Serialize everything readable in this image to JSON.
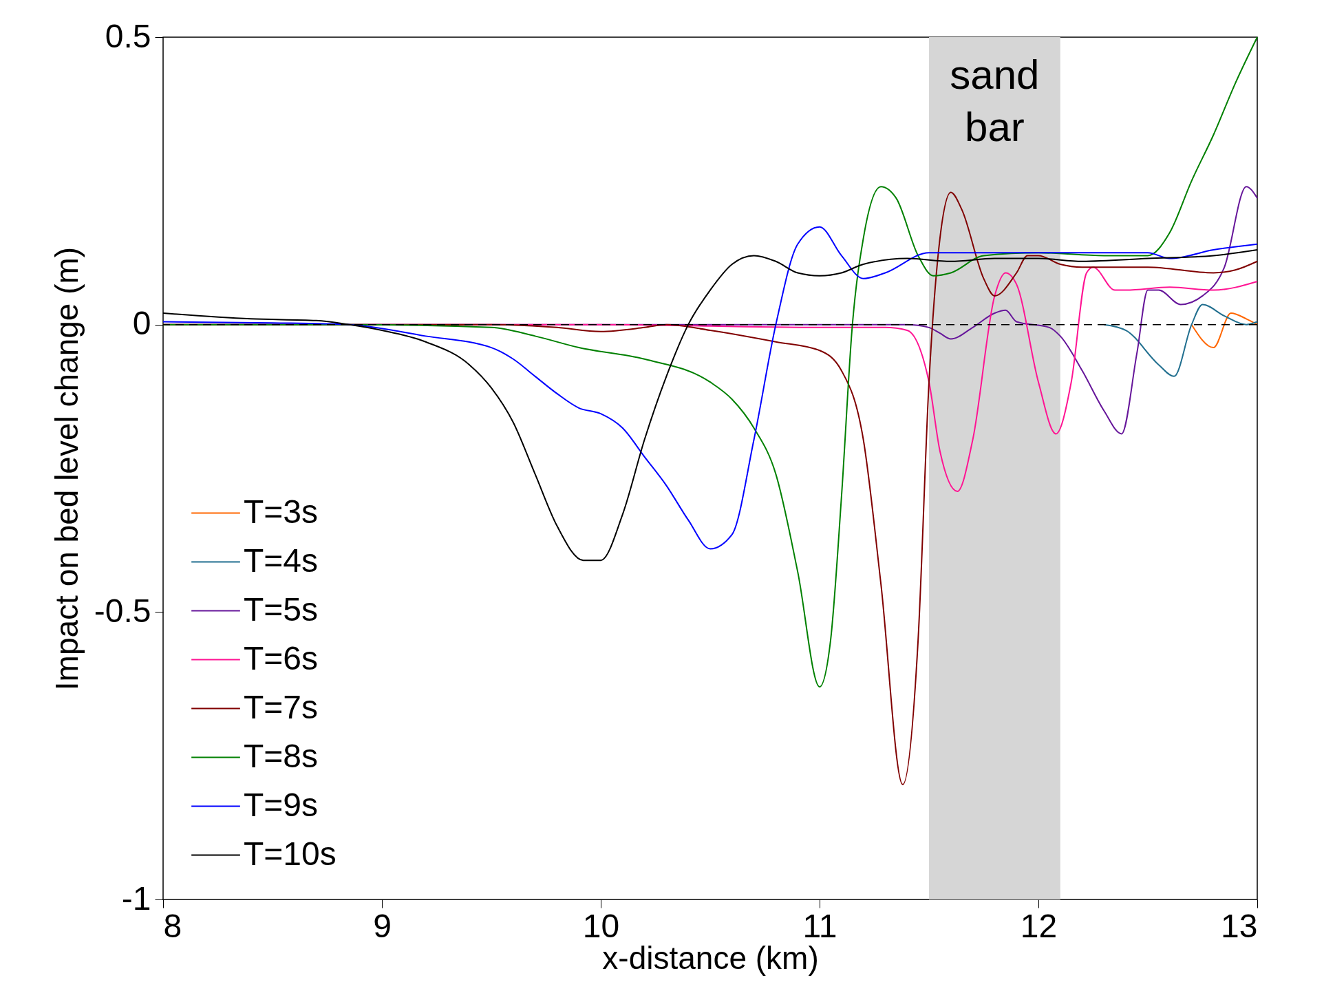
{
  "chart_data": {
    "type": "line",
    "xlabel": "x-distance (km)",
    "ylabel": "Impact on bed level change (m)",
    "xlim": [
      8,
      13
    ],
    "ylim": [
      -1,
      0.5
    ],
    "xticks": [
      8,
      9,
      10,
      11,
      12,
      13
    ],
    "yticks": [
      -1,
      -0.5,
      0,
      0.5
    ],
    "grid": false,
    "legend": "bottom left",
    "marker": "none",
    "line_style": "solid",
    "ref_lines": [
      {
        "axis": "y",
        "value": 0,
        "color": "#000000",
        "line_style": "dashed"
      }
    ],
    "bands": [
      {
        "axis": "x",
        "from": 11.5,
        "to": 12.1,
        "label": "sand bar",
        "color": "#d6d6d6"
      }
    ],
    "series": [
      {
        "name": "T=3s",
        "color": "#ff6600",
        "x": [
          12.7,
          12.8,
          12.88,
          12.95,
          13
        ],
        "values": [
          0,
          -0.04,
          0.02,
          0.01,
          0
        ]
      },
      {
        "name": "T=4s",
        "color": "#216f8f",
        "x": [
          12.3,
          12.4,
          12.55,
          12.62,
          12.7,
          12.75,
          12.85,
          12.95,
          13
        ],
        "values": [
          0,
          -0.01,
          -0.07,
          -0.09,
          0,
          0.035,
          0.015,
          0,
          0.005
        ]
      },
      {
        "name": "T=5s",
        "color": "#66169a",
        "x": [
          8,
          9,
          10,
          11,
          11.4,
          11.5,
          11.55,
          11.6,
          11.7,
          11.8,
          11.85,
          11.9,
          12.05,
          12.1,
          12.2,
          12.3,
          12.38,
          12.45,
          12.5,
          12.55,
          12.65,
          12.75,
          12.85,
          12.95,
          13
        ],
        "values": [
          0,
          0,
          0,
          0,
          0,
          -0.005,
          -0.015,
          -0.025,
          -0.005,
          0.02,
          0.025,
          0.005,
          -0.005,
          -0.02,
          -0.08,
          -0.15,
          -0.19,
          -0.05,
          0.06,
          0.06,
          0.035,
          0.05,
          0.1,
          0.24,
          0.22
        ]
      },
      {
        "name": "T=6s",
        "color": "#ff1493",
        "x": [
          8,
          9,
          10,
          11,
          11.3,
          11.4,
          11.5,
          11.55,
          11.63,
          11.7,
          11.8,
          11.85,
          11.9,
          12,
          12.08,
          12.15,
          12.22,
          12.25,
          12.35,
          12.4,
          12.6,
          12.8,
          13
        ],
        "values": [
          0,
          0,
          0,
          -0.005,
          -0.005,
          -0.01,
          -0.1,
          -0.22,
          -0.29,
          -0.2,
          0.05,
          0.09,
          0.07,
          -0.1,
          -0.19,
          -0.1,
          0.09,
          0.1,
          0.06,
          0.06,
          0.065,
          0.06,
          0.075
        ]
      },
      {
        "name": "T=7s",
        "color": "#800000",
        "x": [
          8,
          9,
          9.5,
          9.8,
          10,
          10.2,
          10.3,
          10.5,
          10.8,
          11,
          11.1,
          11.2,
          11.28,
          11.38,
          11.45,
          11.5,
          11.55,
          11.6,
          11.65,
          11.75,
          11.8,
          11.9,
          11.95,
          12,
          12.1,
          12.2,
          12.5,
          12.8,
          12.9,
          13
        ],
        "values": [
          0,
          0,
          0,
          -0.005,
          -0.012,
          -0.005,
          0,
          -0.01,
          -0.03,
          -0.045,
          -0.08,
          -0.2,
          -0.45,
          -0.8,
          -0.55,
          -0.1,
          0.15,
          0.23,
          0.2,
          0.08,
          0.05,
          0.09,
          0.12,
          0.12,
          0.105,
          0.1,
          0.1,
          0.09,
          0.095,
          0.11
        ]
      },
      {
        "name": "T=8s",
        "color": "#008000",
        "x": [
          8,
          8.85,
          9.5,
          9.7,
          9.9,
          10.2,
          10.5,
          10.6,
          10.7,
          10.8,
          10.9,
          11,
          11.05,
          11.1,
          11.15,
          11.2,
          11.28,
          11.35,
          11.45,
          11.52,
          11.6,
          11.75,
          12,
          12.3,
          12.5,
          12.6,
          12.7,
          12.8,
          12.9,
          13
        ],
        "values": [
          0,
          0,
          -0.005,
          -0.02,
          -0.04,
          -0.06,
          -0.1,
          -0.13,
          -0.18,
          -0.26,
          -0.43,
          -0.63,
          -0.55,
          -0.3,
          0,
          0.15,
          0.24,
          0.22,
          0.12,
          0.085,
          0.09,
          0.12,
          0.125,
          0.12,
          0.12,
          0.16,
          0.25,
          0.33,
          0.42,
          0.5
        ]
      },
      {
        "name": "T=9s",
        "color": "#0000ff",
        "x": [
          8,
          8.5,
          8.85,
          9.2,
          9.5,
          9.6,
          9.7,
          9.8,
          9.9,
          10,
          10.1,
          10.2,
          10.3,
          10.4,
          10.5,
          10.6,
          10.7,
          10.8,
          10.9,
          11,
          11.1,
          11.2,
          11.3,
          11.5,
          12,
          12.5,
          12.6,
          12.8,
          13
        ],
        "values": [
          0.005,
          0.003,
          0,
          -0.02,
          -0.04,
          -0.06,
          -0.09,
          -0.12,
          -0.145,
          -0.155,
          -0.18,
          -0.23,
          -0.28,
          -0.34,
          -0.39,
          -0.365,
          -0.2,
          0,
          0.14,
          0.17,
          0.12,
          0.08,
          0.09,
          0.125,
          0.125,
          0.125,
          0.115,
          0.13,
          0.14
        ]
      },
      {
        "name": "T=10s",
        "color": "#000000",
        "x": [
          8,
          8.4,
          8.7,
          8.85,
          9,
          9.2,
          9.4,
          9.5,
          9.6,
          9.7,
          9.8,
          9.92,
          10,
          10.1,
          10.2,
          10.3,
          10.4,
          10.5,
          10.6,
          10.7,
          10.8,
          10.9,
          11,
          11.1,
          11.2,
          11.4,
          11.6,
          11.8,
          12,
          12.2,
          12.5,
          12.8,
          13
        ],
        "values": [
          0.02,
          0.01,
          0.007,
          0,
          -0.01,
          -0.03,
          -0.07,
          -0.11,
          -0.17,
          -0.26,
          -0.35,
          -0.41,
          -0.41,
          -0.33,
          -0.2,
          -0.09,
          0,
          0.06,
          0.105,
          0.12,
          0.11,
          0.09,
          0.085,
          0.09,
          0.105,
          0.115,
          0.11,
          0.115,
          0.115,
          0.11,
          0.115,
          0.12,
          0.13
        ]
      }
    ]
  }
}
